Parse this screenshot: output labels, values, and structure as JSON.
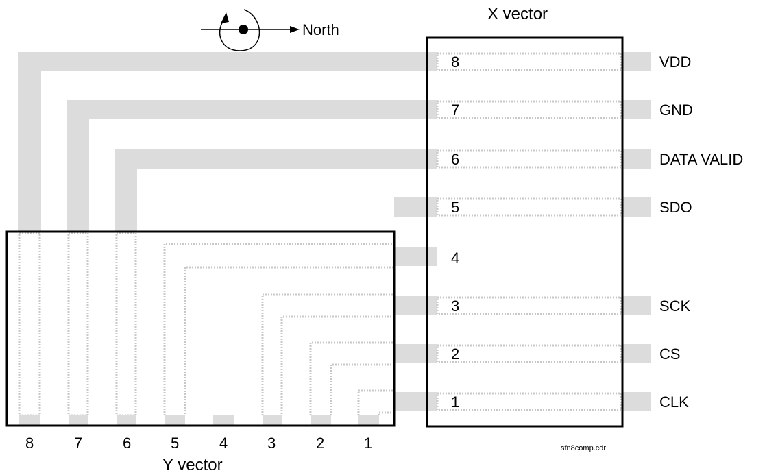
{
  "x_vector": {
    "title": "X vector",
    "pins": [
      "8",
      "7",
      "6",
      "5",
      "4",
      "3",
      "2",
      "1"
    ]
  },
  "y_vector": {
    "title": "Y vector",
    "pins": [
      "8",
      "7",
      "6",
      "5",
      "4",
      "3",
      "2",
      "1"
    ]
  },
  "signals": [
    "VDD",
    "GND",
    "DATA VALID",
    "SDO",
    "",
    "SCK",
    "CS",
    "CLK"
  ],
  "north": {
    "label": "North"
  },
  "footer": {
    "filename": "sfn8comp.cdr"
  },
  "colors": {
    "trace": "#dcdcdc",
    "dotted": "#c8c8c8",
    "outline": "#000000"
  }
}
